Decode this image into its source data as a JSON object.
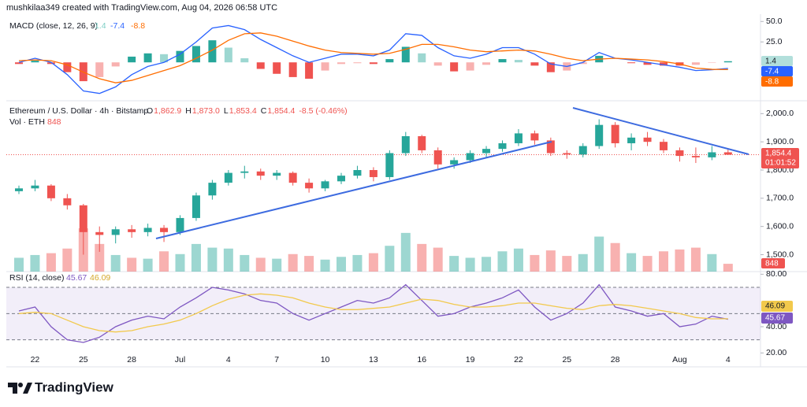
{
  "header": {
    "created": "mushkilaa349 created with TradingView.com, Aug 04, 2026 06:58 UTC",
    "symbol": "Ethereum / U.S. Dollar · 4h · Bitstamp",
    "ohlc": [
      {
        "key": "O",
        "value": "1,862.9"
      },
      {
        "key": "H",
        "value": "1,873.0"
      },
      {
        "key": "L",
        "value": "1,853.4"
      },
      {
        "key": "C",
        "value": "1,854.4"
      }
    ],
    "change": "-8.5 (-0.46%)",
    "volume_label": "Vol · ETH",
    "timer": "01:01:52"
  },
  "footer": "TradingView",
  "chart_data": [
    {
      "type": "candlestick",
      "categories": [
        null,
        "22",
        null,
        null,
        "25",
        null,
        null,
        "28",
        null,
        null,
        "Jul",
        null,
        null,
        "4",
        null,
        null,
        "7",
        null,
        null,
        "10",
        null,
        null,
        "13",
        null,
        null,
        "16",
        null,
        null,
        "19",
        null,
        null,
        "22",
        null,
        null,
        "25",
        null,
        null,
        "28",
        null,
        null,
        null,
        "Aug",
        null,
        null,
        "4"
      ],
      "open": [
        1725,
        1735,
        1745,
        1700,
        1675,
        1580,
        1570,
        1590,
        1580,
        1595,
        1580,
        1630,
        1710,
        1755,
        1790,
        1795,
        1780,
        1790,
        1755,
        1735,
        1760,
        1780,
        1800,
        1775,
        1860,
        1920,
        1870,
        1820,
        1835,
        1860,
        1875,
        1895,
        1930,
        1905,
        1860,
        1855,
        1885,
        1960,
        1895,
        1915,
        1900,
        1870,
        1850,
        1845,
        1862.9
      ],
      "high": [
        1745,
        1765,
        1750,
        1715,
        1680,
        1600,
        1600,
        1605,
        1610,
        1605,
        1640,
        1720,
        1765,
        1800,
        1815,
        1805,
        1800,
        1795,
        1770,
        1765,
        1790,
        1815,
        1810,
        1870,
        1935,
        1925,
        1880,
        1845,
        1870,
        1885,
        1905,
        1945,
        1940,
        1915,
        1870,
        1895,
        1980,
        1970,
        1930,
        1935,
        1910,
        1880,
        1880,
        1885,
        1873
      ],
      "low": [
        1715,
        1725,
        1690,
        1660,
        1500,
        1510,
        1540,
        1560,
        1565,
        1545,
        1570,
        1620,
        1695,
        1745,
        1770,
        1765,
        1765,
        1745,
        1720,
        1725,
        1750,
        1770,
        1760,
        1765,
        1850,
        1860,
        1805,
        1805,
        1825,
        1845,
        1865,
        1885,
        1890,
        1850,
        1840,
        1845,
        1875,
        1880,
        1870,
        1885,
        1860,
        1830,
        1825,
        1835,
        1853.4
      ],
      "close": [
        1735,
        1745,
        1700,
        1675,
        1580,
        1570,
        1590,
        1580,
        1595,
        1580,
        1630,
        1710,
        1755,
        1790,
        1795,
        1780,
        1790,
        1755,
        1735,
        1760,
        1780,
        1800,
        1775,
        1860,
        1920,
        1870,
        1820,
        1835,
        1860,
        1875,
        1895,
        1930,
        1905,
        1860,
        1855,
        1885,
        1960,
        1895,
        1915,
        1900,
        1870,
        1850,
        1845,
        1862.9,
        1854.4
      ],
      "volume": [
        1500,
        1800,
        2000,
        2500,
        4700,
        3000,
        1800,
        1500,
        1400,
        2200,
        1900,
        3000,
        2600,
        2500,
        1800,
        1500,
        1400,
        1900,
        1700,
        1300,
        1600,
        1800,
        2000,
        2800,
        4200,
        3000,
        2600,
        1700,
        1500,
        1600,
        2200,
        2500,
        1800,
        2300,
        1700,
        1900,
        3800,
        3100,
        2000,
        1700,
        2200,
        2400,
        2600,
        1900,
        848
      ],
      "up_color": "#26a69a",
      "down_color": "#ef5350",
      "ylim": [
        1440,
        2040
      ],
      "yticks": [
        {
          "value": 2000,
          "label": "2,000.0"
        },
        {
          "value": 1900,
          "label": "1,900.0"
        },
        {
          "value": 1800,
          "label": "1,800.0"
        },
        {
          "value": 1700,
          "label": "1,700.0"
        },
        {
          "value": 1600,
          "label": "1,600.0"
        },
        {
          "value": 1500,
          "label": "1,500.0"
        }
      ]
    },
    {
      "type": "macd",
      "title": "MACD (close, 12, 26, 9)",
      "ylim": [
        -46,
        57
      ],
      "yticks": [
        {
          "value": 50,
          "label": "50.0"
        },
        {
          "value": 25,
          "label": "25.0"
        }
      ],
      "series": [
        {
          "style": "histogram",
          "color": "#26a69a",
          "color_negative": "#ef5350",
          "values": [
            -2,
            2,
            -2,
            -12,
            -23,
            -18,
            -5,
            7,
            11,
            10,
            14,
            20,
            27,
            18,
            5,
            -8,
            -14,
            -18,
            -20,
            -10,
            -2,
            -1,
            -2,
            4,
            19,
            11,
            -4,
            -11,
            -10,
            -3,
            4,
            3,
            -4,
            -12,
            -10,
            -2,
            8,
            0,
            -1,
            -3,
            -4,
            -4,
            -3,
            -0.5,
            1.4
          ]
        },
        {
          "style": "line",
          "color": "#2962ff",
          "values": [
            0,
            5,
            0,
            -15,
            -35,
            -38,
            -30,
            -15,
            -5,
            0,
            10,
            25,
            42,
            45,
            40,
            28,
            18,
            8,
            0,
            5,
            10,
            10,
            8,
            15,
            35,
            33,
            18,
            8,
            5,
            10,
            18,
            18,
            10,
            -2,
            -5,
            0,
            12,
            5,
            3,
            0,
            -3,
            -6,
            -10,
            -9,
            -7.4
          ]
        },
        {
          "style": "line",
          "color": "#ff6d00",
          "values": [
            2,
            3,
            2,
            -3,
            -12,
            -20,
            -25,
            -22,
            -16,
            -10,
            -4,
            5,
            15,
            27,
            35,
            36,
            32,
            26,
            20,
            15,
            12,
            11,
            10,
            11,
            16,
            22,
            22,
            19,
            15,
            13,
            14,
            15,
            14,
            10,
            5,
            2,
            4,
            5,
            4,
            3,
            1,
            -2,
            -7,
            -8.5,
            -8.8
          ]
        }
      ]
    },
    {
      "type": "line",
      "title": "RSI (14, close)",
      "ylim": [
        10,
        82
      ],
      "yticks": [
        {
          "value": 80,
          "label": "80.00"
        },
        {
          "value": 40,
          "label": "40.00"
        },
        {
          "value": 20,
          "label": "20.00"
        }
      ],
      "levels": [
        70,
        50,
        30
      ],
      "series": [
        {
          "color": "#7e57c2",
          "values": [
            52,
            55,
            40,
            30,
            28,
            32,
            40,
            45,
            48,
            46,
            55,
            62,
            70,
            68,
            65,
            60,
            58,
            50,
            45,
            50,
            55,
            60,
            58,
            62,
            72,
            60,
            48,
            50,
            55,
            58,
            62,
            68,
            55,
            45,
            50,
            58,
            72,
            55,
            52,
            48,
            50,
            40,
            42,
            48,
            45.67
          ]
        },
        {
          "color": "#f2c94c",
          "values": [
            50,
            51,
            50,
            45,
            40,
            37,
            36,
            37,
            40,
            42,
            45,
            50,
            56,
            61,
            64,
            65,
            64,
            62,
            58,
            55,
            53,
            53,
            54,
            55,
            58,
            61,
            60,
            57,
            55,
            55,
            56,
            58,
            58,
            56,
            54,
            53,
            56,
            57,
            56,
            54,
            52,
            50,
            47,
            46,
            46.09
          ]
        }
      ]
    }
  ]
}
